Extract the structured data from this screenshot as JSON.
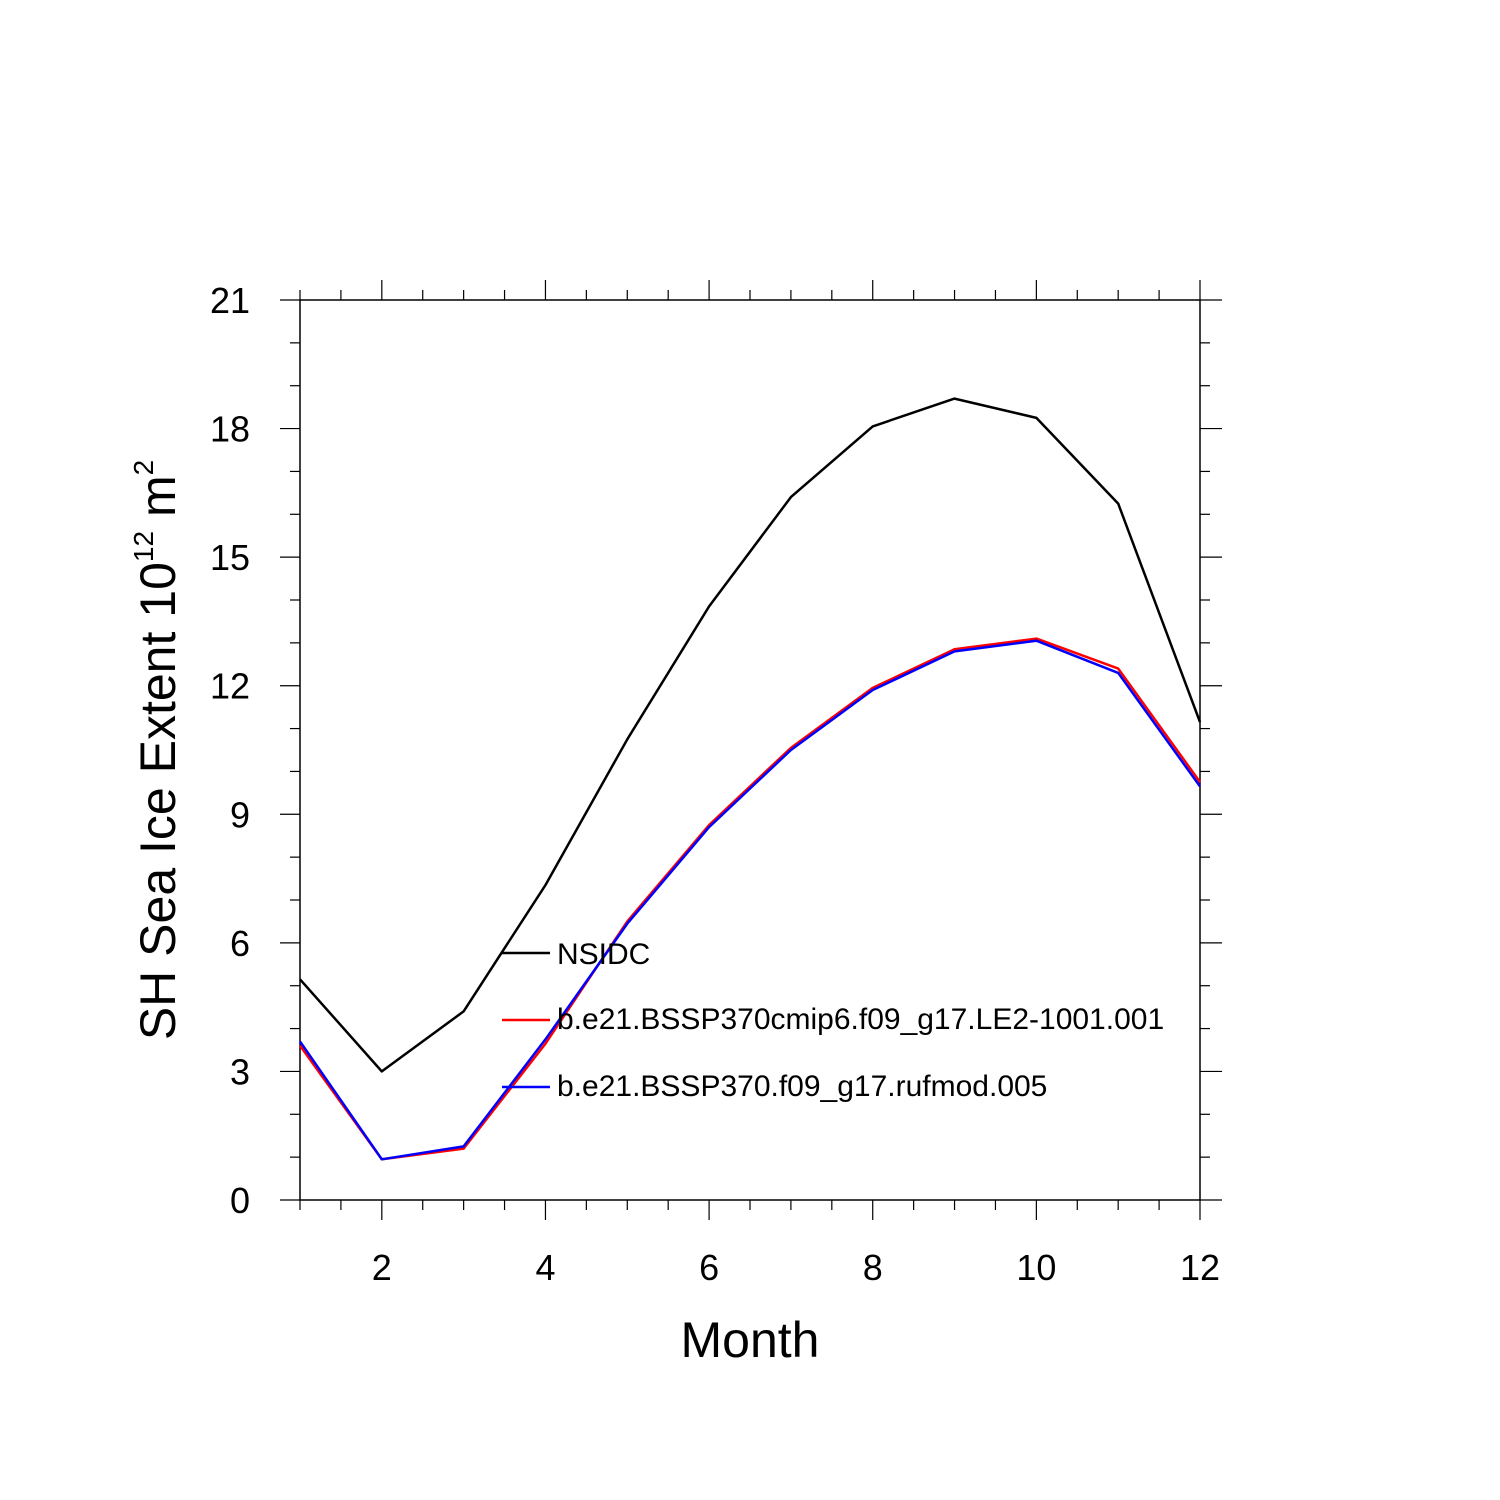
{
  "chart_data": {
    "type": "line",
    "title": "",
    "xlabel": "Month",
    "ylabel_main": "SH Sea Ice Extent 10",
    "ylabel_exp": "12",
    "ylabel_unit": " m",
    "ylabel_unit_exp": "2",
    "xlim": [
      1,
      12
    ],
    "ylim": [
      0,
      21
    ],
    "x_ticks": [
      2,
      4,
      6,
      8,
      10,
      12
    ],
    "y_ticks": [
      0,
      3,
      6,
      9,
      12,
      15,
      18,
      21
    ],
    "x": [
      1,
      2,
      3,
      4,
      5,
      6,
      7,
      8,
      9,
      10,
      11,
      12
    ],
    "series": [
      {
        "name": "NSIDC",
        "color": "#000000",
        "values": [
          5.15,
          3.0,
          4.4,
          7.35,
          10.75,
          13.85,
          16.4,
          18.05,
          18.7,
          18.25,
          16.25,
          11.15
        ]
      },
      {
        "name": "b.e21.BSSP370cmip6.f09_g17.LE2-1001.001",
        "color": "#ff0000",
        "values": [
          3.6,
          0.95,
          1.2,
          3.65,
          6.5,
          8.75,
          10.55,
          11.95,
          12.85,
          13.1,
          12.4,
          9.75
        ]
      },
      {
        "name": "b.e21.BSSP370.f09_g17.rufmod.005",
        "color": "#0000ff",
        "values": [
          3.7,
          0.95,
          1.25,
          3.75,
          6.45,
          8.7,
          10.5,
          11.9,
          12.8,
          13.05,
          12.3,
          9.65
        ]
      }
    ],
    "legend_position": "center"
  }
}
